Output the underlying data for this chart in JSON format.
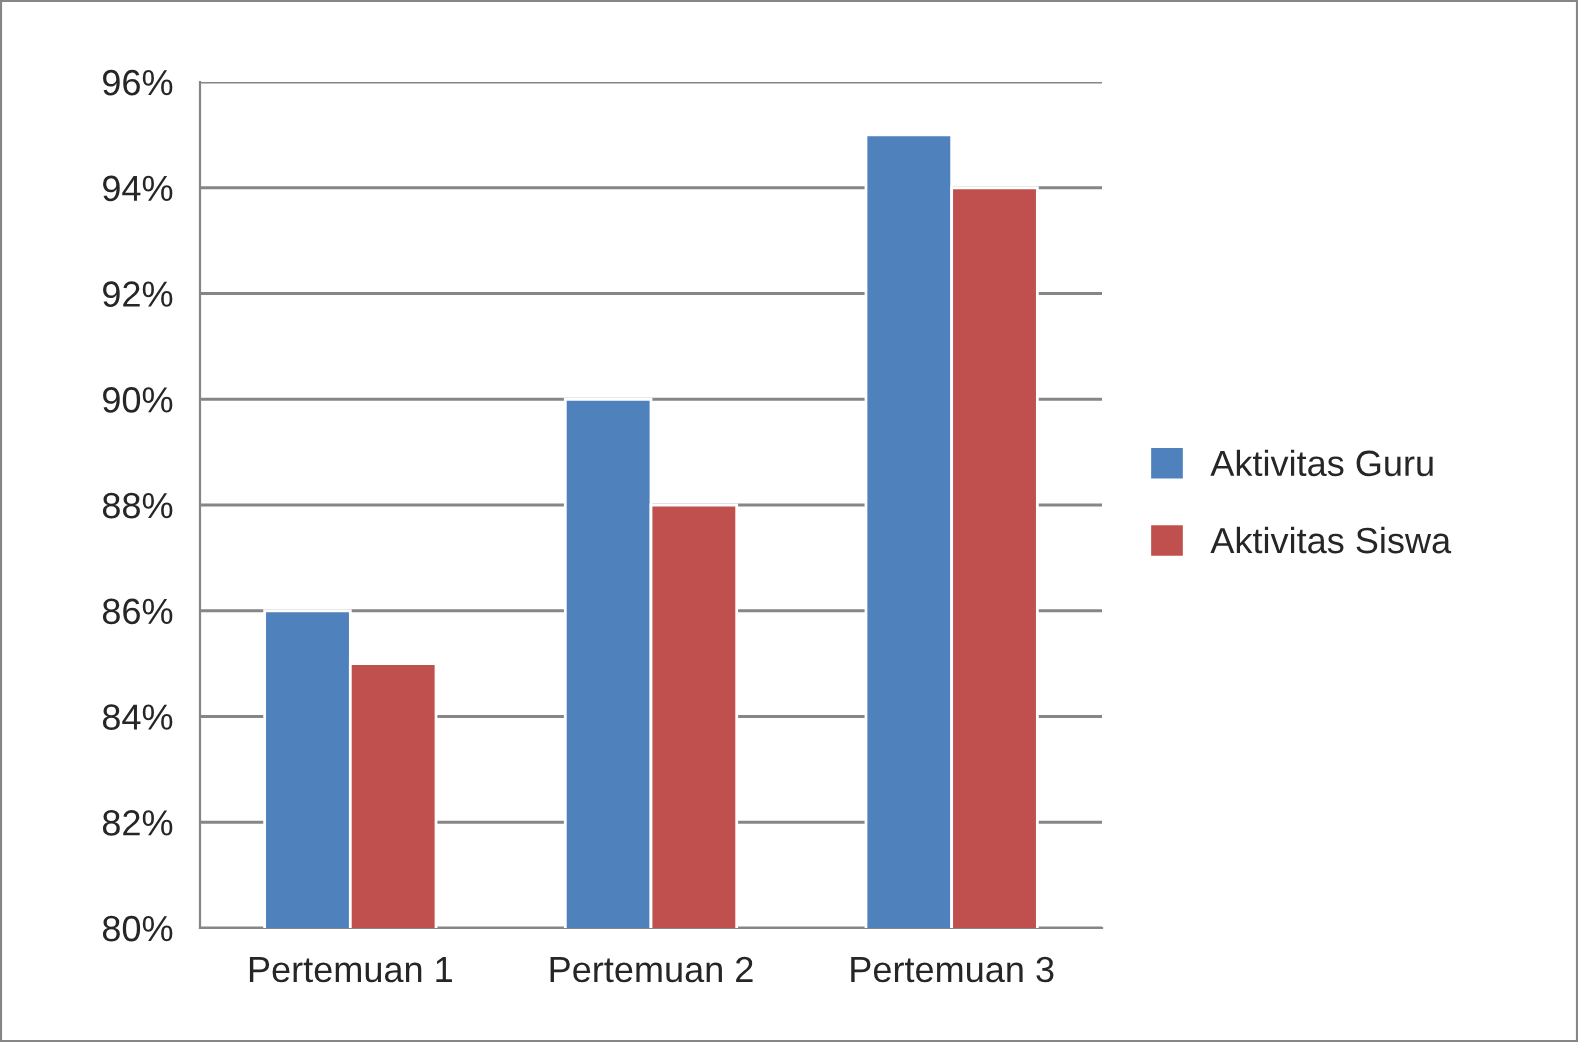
{
  "chart_data": {
    "type": "bar",
    "categories": [
      "Pertemuan 1",
      "Pertemuan 2",
      "Pertemuan 3"
    ],
    "series": [
      {
        "name": "Aktivitas Guru",
        "color": "#4f81bd",
        "values": [
          86,
          90,
          95
        ]
      },
      {
        "name": "Aktivitas Siswa",
        "color": "#c0504d",
        "values": [
          85,
          88,
          94
        ]
      }
    ],
    "ylim": [
      80,
      96
    ],
    "yticks": [
      {
        "value": 80,
        "label": "80%"
      },
      {
        "value": 82,
        "label": "82%"
      },
      {
        "value": 84,
        "label": "84%"
      },
      {
        "value": 86,
        "label": "86%"
      },
      {
        "value": 88,
        "label": "88%"
      },
      {
        "value": 90,
        "label": "90%"
      },
      {
        "value": 92,
        "label": "92%"
      },
      {
        "value": 94,
        "label": "94%"
      },
      {
        "value": 96,
        "label": "96%"
      }
    ],
    "grid": "y",
    "legend": "right"
  }
}
